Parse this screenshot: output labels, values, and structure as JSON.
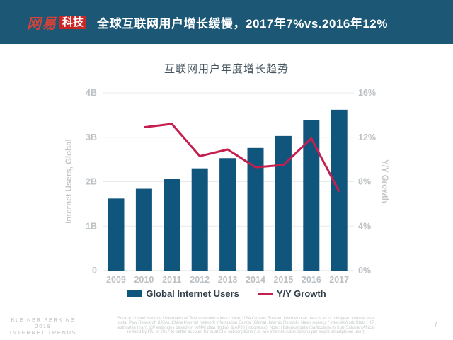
{
  "header": {
    "logo_netease": "网易",
    "logo_tech": "科技",
    "title": "全球互联网用户增长缓慢，2017年7%vs.2016年12%"
  },
  "chart_data": {
    "type": "bar",
    "title": "互联网用户年度增长趋势",
    "categories": [
      "2009",
      "2010",
      "2011",
      "2012",
      "2013",
      "2014",
      "2015",
      "2016",
      "2017"
    ],
    "series": [
      {
        "name": "Global Internet Users",
        "type": "bar",
        "axis": "left",
        "values": [
          1.62,
          1.84,
          2.07,
          2.3,
          2.53,
          2.76,
          3.03,
          3.38,
          3.62
        ]
      },
      {
        "name": "Y/Y Growth",
        "type": "line",
        "axis": "right",
        "values": [
          null,
          12.9,
          13.2,
          10.3,
          10.9,
          9.3,
          9.5,
          11.9,
          7.1
        ]
      }
    ],
    "left_axis": {
      "label": "Internet Users, Global",
      "ticks": [
        "0",
        "1B",
        "2B",
        "3B",
        "4B"
      ],
      "min": 0,
      "max": 4
    },
    "right_axis": {
      "label": "Y/Y Growth",
      "ticks": [
        "0%",
        "4%",
        "8%",
        "12%",
        "16%"
      ],
      "min": 0,
      "max": 16
    },
    "legend": [
      {
        "label": "Global Internet Users",
        "marker": "rect",
        "color": "#10557c"
      },
      {
        "label": "Y/Y Growth",
        "marker": "line",
        "color": "#c51f50"
      }
    ],
    "grid": true,
    "legend_position": "bottom",
    "colors": {
      "bar": "#10557c",
      "line": "#c51f50",
      "grid": "#eaeaea",
      "tick_text": "#bdc1c4",
      "axis_title": "#c2c6c9"
    }
  },
  "footer": {
    "brand_lines": [
      "KLEINER PERKINS",
      "2018",
      "INTERNET TRENDS"
    ],
    "source_lines": [
      "Source: United Nations / International Telecommunications Union, USA Census Bureau. Internet user data is as of mid-year. Internet user",
      "data: Pew Research (USA), China Internet Network Information Center (China), Islamic Republic News Agency / InternetWorldStats / KP",
      "estimates (Iran), KP estimates based on IAMAI data (India), & APJII (Indonesia). Note: Historical data (particularly in Sub-Saharan Africa)",
      "revised by ITU in 2017 to better account for dual-SIM subscriptions (i.e. two internet subscriptions per single smartphone user)."
    ],
    "page_number": "7"
  }
}
